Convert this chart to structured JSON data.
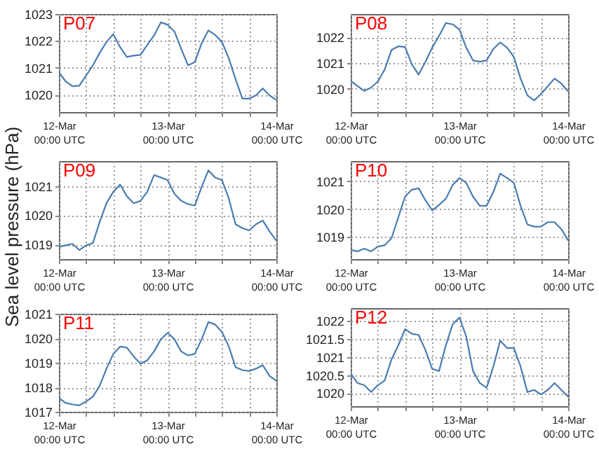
{
  "chart_data": [
    {
      "type": "line",
      "title": "P07",
      "x": [
        "--03-12T00:00",
        "--03-12T01:30",
        "--03-12T03:00",
        "--03-12T04:30",
        "--03-12T06:00",
        "--03-12T07:30",
        "--03-12T09:00",
        "--03-12T10:30",
        "--03-12T12:00",
        "--03-12T13:30",
        "--03-12T15:00",
        "--03-12T16:30",
        "--03-12T18:00",
        "--03-12T19:30",
        "--03-12T21:00",
        "--03-12T22:30",
        "--03-13T00:00",
        "--03-13T01:30",
        "--03-13T03:00",
        "--03-13T04:30",
        "--03-13T06:00",
        "--03-13T07:30",
        "--03-13T09:00",
        "--03-13T10:30",
        "--03-13T12:00",
        "--03-13T13:30",
        "--03-13T15:00",
        "--03-13T16:30",
        "--03-13T18:00",
        "--03-13T19:30",
        "--03-13T21:00",
        "--03-13T22:30",
        "--03-14T00:00"
      ],
      "xlim": [
        "--03-12T00:00",
        "--03-14T00:00"
      ],
      "xticks": [
        {
          "value": "--03-12T00:00",
          "label": "12-Mar\n00:00 UTC"
        },
        {
          "value": "--03-12T06:00",
          "label": null
        },
        {
          "value": "--03-12T12:00",
          "label": null
        },
        {
          "value": "--03-12T18:00",
          "label": null
        },
        {
          "value": "--03-13T00:00",
          "label": "13-Mar\n00:00 UTC"
        },
        {
          "value": "--03-13T06:00",
          "label": null
        },
        {
          "value": "--03-13T12:00",
          "label": null
        },
        {
          "value": "--03-13T18:00",
          "label": null
        },
        {
          "value": "--03-14T00:00",
          "label": "14-Mar\n00:00 UTC"
        }
      ],
      "ylim": [
        1019.35,
        1023
      ],
      "yticks": [
        1020,
        1021,
        1022,
        1023
      ],
      "grid": true,
      "series": [
        {
          "color": "#4a7cb0",
          "values": [
            1020.83,
            1020.49,
            1020.31,
            1020.33,
            1020.71,
            1021.09,
            1021.55,
            1021.96,
            1022.25,
            1021.77,
            1021.4,
            1021.45,
            1021.48,
            1021.85,
            1022.2,
            1022.69,
            1022.6,
            1022.35,
            1021.7,
            1021.09,
            1021.21,
            1021.91,
            1022.39,
            1022.22,
            1021.96,
            1021.35,
            1020.57,
            1019.85,
            1019.85,
            1019.97,
            1020.23,
            1019.97,
            1019.8
          ]
        }
      ]
    },
    {
      "type": "line",
      "title": "P08",
      "x": [
        "--03-12T00:00",
        "--03-12T01:30",
        "--03-12T03:00",
        "--03-12T04:30",
        "--03-12T06:00",
        "--03-12T07:30",
        "--03-12T09:00",
        "--03-12T10:30",
        "--03-12T12:00",
        "--03-12T13:30",
        "--03-12T15:00",
        "--03-12T16:30",
        "--03-12T18:00",
        "--03-12T19:30",
        "--03-12T21:00",
        "--03-12T22:30",
        "--03-13T00:00",
        "--03-13T01:30",
        "--03-13T03:00",
        "--03-13T04:30",
        "--03-13T06:00",
        "--03-13T07:30",
        "--03-13T09:00",
        "--03-13T10:30",
        "--03-13T12:00",
        "--03-13T13:30",
        "--03-13T15:00",
        "--03-13T16:30",
        "--03-13T18:00",
        "--03-13T19:30",
        "--03-13T21:00",
        "--03-13T22:30",
        "--03-14T00:00"
      ],
      "xlim": [
        "--03-12T00:00",
        "--03-14T00:00"
      ],
      "xticks": [
        {
          "value": "--03-12T00:00",
          "label": "12-Mar\n00:00 UTC"
        },
        {
          "value": "--03-12T06:00",
          "label": null
        },
        {
          "value": "--03-12T12:00",
          "label": null
        },
        {
          "value": "--03-12T18:00",
          "label": null
        },
        {
          "value": "--03-13T00:00",
          "label": "13-Mar\n00:00 UTC"
        },
        {
          "value": "--03-13T06:00",
          "label": null
        },
        {
          "value": "--03-13T12:00",
          "label": null
        },
        {
          "value": "--03-13T18:00",
          "label": null
        },
        {
          "value": "--03-14T00:00",
          "label": "14-Mar\n00:00 UTC"
        }
      ],
      "ylim": [
        1019.1,
        1022.9
      ],
      "yticks": [
        1020,
        1021,
        1022
      ],
      "grid": true,
      "series": [
        {
          "color": "#4a7cb0",
          "values": [
            1020.31,
            1020.11,
            1019.92,
            1020.05,
            1020.28,
            1020.75,
            1021.5,
            1021.65,
            1021.62,
            1020.95,
            1020.55,
            1021.05,
            1021.6,
            1022.05,
            1022.55,
            1022.5,
            1022.3,
            1021.6,
            1021.1,
            1021.05,
            1021.1,
            1021.55,
            1021.8,
            1021.6,
            1021.24,
            1020.4,
            1019.75,
            1019.55,
            1019.8,
            1020.1,
            1020.4,
            1020.2,
            1019.9
          ]
        }
      ]
    },
    {
      "type": "line",
      "title": "P09",
      "ylabel": "Sea level pressure (hPa)",
      "x": [
        "--03-12T00:00",
        "--03-12T01:30",
        "--03-12T03:00",
        "--03-12T04:30",
        "--03-12T06:00",
        "--03-12T07:30",
        "--03-12T09:00",
        "--03-12T10:30",
        "--03-12T12:00",
        "--03-12T13:30",
        "--03-12T15:00",
        "--03-12T16:30",
        "--03-12T18:00",
        "--03-12T19:30",
        "--03-12T21:00",
        "--03-12T22:30",
        "--03-13T00:00",
        "--03-13T01:30",
        "--03-13T03:00",
        "--03-13T04:30",
        "--03-13T06:00",
        "--03-13T07:30",
        "--03-13T09:00",
        "--03-13T10:30",
        "--03-13T12:00",
        "--03-13T13:30",
        "--03-13T15:00",
        "--03-13T16:30",
        "--03-13T18:00",
        "--03-13T19:30",
        "--03-13T21:00",
        "--03-13T22:30",
        "--03-14T00:00"
      ],
      "xlim": [
        "--03-12T00:00",
        "--03-14T00:00"
      ],
      "xticks": [
        {
          "value": "--03-12T00:00",
          "label": "12-Mar\n00:00 UTC"
        },
        {
          "value": "--03-12T06:00",
          "label": null
        },
        {
          "value": "--03-12T12:00",
          "label": null
        },
        {
          "value": "--03-12T18:00",
          "label": null
        },
        {
          "value": "--03-13T00:00",
          "label": "13-Mar\n00:00 UTC"
        },
        {
          "value": "--03-13T06:00",
          "label": null
        },
        {
          "value": "--03-13T12:00",
          "label": null
        },
        {
          "value": "--03-13T18:00",
          "label": null
        },
        {
          "value": "--03-14T00:00",
          "label": "14-Mar\n00:00 UTC"
        }
      ],
      "ylim": [
        1018.5,
        1021.85
      ],
      "yticks": [
        1019,
        1020,
        1021
      ],
      "grid": true,
      "series": [
        {
          "color": "#4a7cb0",
          "values": [
            1018.92,
            1018.97,
            1019.02,
            1018.81,
            1018.97,
            1019.05,
            1019.77,
            1020.41,
            1020.8,
            1021.05,
            1020.65,
            1020.41,
            1020.49,
            1020.8,
            1021.37,
            1021.29,
            1021.2,
            1020.73,
            1020.49,
            1020.38,
            1020.33,
            1020.97,
            1021.53,
            1021.29,
            1021.2,
            1020.57,
            1019.69,
            1019.56,
            1019.48,
            1019.69,
            1019.82,
            1019.45,
            1019.13
          ]
        }
      ]
    },
    {
      "type": "line",
      "title": "P10",
      "x": [
        "--03-12T00:00",
        "--03-12T01:30",
        "--03-12T03:00",
        "--03-12T04:30",
        "--03-12T06:00",
        "--03-12T07:30",
        "--03-12T09:00",
        "--03-12T10:30",
        "--03-12T12:00",
        "--03-12T13:30",
        "--03-12T15:00",
        "--03-12T16:30",
        "--03-12T18:00",
        "--03-12T19:30",
        "--03-12T21:00",
        "--03-12T22:30",
        "--03-13T00:00",
        "--03-13T01:30",
        "--03-13T03:00",
        "--03-13T04:30",
        "--03-13T06:00",
        "--03-13T07:30",
        "--03-13T09:00",
        "--03-13T10:30",
        "--03-13T12:00",
        "--03-13T13:30",
        "--03-13T15:00",
        "--03-13T16:30",
        "--03-13T18:00",
        "--03-13T19:30",
        "--03-13T21:00",
        "--03-13T22:30",
        "--03-14T00:00"
      ],
      "xlim": [
        "--03-12T00:00",
        "--03-14T00:00"
      ],
      "xticks": [
        {
          "value": "--03-12T00:00",
          "label": "12-Mar\n00:00 UTC"
        },
        {
          "value": "--03-12T06:00",
          "label": null
        },
        {
          "value": "--03-12T12:00",
          "label": null
        },
        {
          "value": "--03-12T18:00",
          "label": null
        },
        {
          "value": "--03-13T00:00",
          "label": "13-Mar\n00:00 UTC"
        },
        {
          "value": "--03-13T06:00",
          "label": null
        },
        {
          "value": "--03-13T12:00",
          "label": null
        },
        {
          "value": "--03-13T18:00",
          "label": null
        },
        {
          "value": "--03-14T00:00",
          "label": "14-Mar\n00:00 UTC"
        }
      ],
      "ylim": [
        1018.2,
        1021.73
      ],
      "yticks": [
        1019,
        1020,
        1021
      ],
      "grid": true,
      "series": [
        {
          "color": "#4a7cb0",
          "values": [
            1018.53,
            1018.48,
            1018.58,
            1018.48,
            1018.65,
            1018.7,
            1018.95,
            1019.7,
            1020.45,
            1020.7,
            1020.75,
            1020.32,
            1019.95,
            1020.15,
            1020.37,
            1020.87,
            1021.12,
            1020.95,
            1020.45,
            1020.12,
            1020.12,
            1020.62,
            1021.28,
            1021.12,
            1020.95,
            1020.12,
            1019.45,
            1019.37,
            1019.37,
            1019.53,
            1019.53,
            1019.28,
            1018.87
          ]
        }
      ]
    },
    {
      "type": "line",
      "title": "P11",
      "x": [
        "--03-12T00:00",
        "--03-12T01:30",
        "--03-12T03:00",
        "--03-12T04:30",
        "--03-12T06:00",
        "--03-12T07:30",
        "--03-12T09:00",
        "--03-12T10:30",
        "--03-12T12:00",
        "--03-12T13:30",
        "--03-12T15:00",
        "--03-12T16:30",
        "--03-12T18:00",
        "--03-12T19:30",
        "--03-12T21:00",
        "--03-12T22:30",
        "--03-13T00:00",
        "--03-13T01:30",
        "--03-13T03:00",
        "--03-13T04:30",
        "--03-13T06:00",
        "--03-13T07:30",
        "--03-13T09:00",
        "--03-13T10:30",
        "--03-13T12:00",
        "--03-13T13:30",
        "--03-13T15:00",
        "--03-13T16:30",
        "--03-13T18:00",
        "--03-13T19:30",
        "--03-13T21:00",
        "--03-13T22:30",
        "--03-14T00:00"
      ],
      "xlim": [
        "--03-12T00:00",
        "--03-14T00:00"
      ],
      "xticks": [
        {
          "value": "--03-12T00:00",
          "label": "12-Mar\n00:00 UTC"
        },
        {
          "value": "--03-12T06:00",
          "label": null
        },
        {
          "value": "--03-12T12:00",
          "label": null
        },
        {
          "value": "--03-12T18:00",
          "label": null
        },
        {
          "value": "--03-13T00:00",
          "label": "13-Mar\n00:00 UTC"
        },
        {
          "value": "--03-13T06:00",
          "label": null
        },
        {
          "value": "--03-13T12:00",
          "label": null
        },
        {
          "value": "--03-13T18:00",
          "label": null
        },
        {
          "value": "--03-14T00:00",
          "label": "14-Mar\n00:00 UTC"
        }
      ],
      "ylim": [
        1017,
        1021
      ],
      "yticks": [
        1017,
        1018,
        1019,
        1020,
        1021
      ],
      "grid": true,
      "series": [
        {
          "color": "#4a7cb0",
          "values": [
            1017.56,
            1017.36,
            1017.3,
            1017.26,
            1017.42,
            1017.62,
            1018.06,
            1018.76,
            1019.36,
            1019.66,
            1019.62,
            1019.26,
            1018.96,
            1019.1,
            1019.46,
            1019.96,
            1020.22,
            1019.96,
            1019.46,
            1019.3,
            1019.36,
            1019.96,
            1020.66,
            1020.56,
            1020.26,
            1019.66,
            1018.82,
            1018.7,
            1018.66,
            1018.76,
            1018.9,
            1018.46,
            1018.26
          ]
        }
      ]
    },
    {
      "type": "line",
      "title": "P12",
      "x": [
        "--03-12T00:00",
        "--03-12T01:30",
        "--03-12T03:00",
        "--03-12T04:30",
        "--03-12T06:00",
        "--03-12T07:30",
        "--03-12T09:00",
        "--03-12T10:30",
        "--03-12T12:00",
        "--03-12T13:30",
        "--03-12T15:00",
        "--03-12T16:30",
        "--03-12T18:00",
        "--03-12T19:30",
        "--03-12T21:00",
        "--03-12T22:30",
        "--03-13T00:00",
        "--03-13T01:30",
        "--03-13T03:00",
        "--03-13T04:30",
        "--03-13T06:00",
        "--03-13T07:30",
        "--03-13T09:00",
        "--03-13T10:30",
        "--03-13T12:00",
        "--03-13T13:30",
        "--03-13T15:00",
        "--03-13T16:30",
        "--03-13T18:00",
        "--03-13T19:30",
        "--03-13T21:00",
        "--03-13T22:30",
        "--03-14T00:00"
      ],
      "xlim": [
        "--03-12T00:00",
        "--03-14T00:00"
      ],
      "xticks": [
        {
          "value": "--03-12T00:00",
          "label": "12-Mar\n00:00 UTC"
        },
        {
          "value": "--03-12T06:00",
          "label": null
        },
        {
          "value": "--03-12T12:00",
          "label": null
        },
        {
          "value": "--03-12T18:00",
          "label": null
        },
        {
          "value": "--03-13T00:00",
          "label": "13-Mar\n00:00 UTC"
        },
        {
          "value": "--03-13T06:00",
          "label": null
        },
        {
          "value": "--03-13T12:00",
          "label": null
        },
        {
          "value": "--03-13T18:00",
          "label": null
        },
        {
          "value": "--03-14T00:00",
          "label": "14-Mar\n00:00 UTC"
        }
      ],
      "ylim": [
        1019.64,
        1022.35
      ],
      "yticks": [
        1020,
        1020.5,
        1021,
        1021.5,
        1022
      ],
      "grid": true,
      "series": [
        {
          "color": "#4a7cb0",
          "values": [
            1020.54,
            1020.28,
            1020.22,
            1020.03,
            1020.22,
            1020.35,
            1020.93,
            1021.32,
            1021.77,
            1021.64,
            1021.61,
            1021.19,
            1020.67,
            1020.61,
            1021.32,
            1021.9,
            1022.09,
            1021.57,
            1020.61,
            1020.28,
            1020.15,
            1020.74,
            1021.45,
            1021.25,
            1021.25,
            1020.74,
            1020.03,
            1020.09,
            1019.96,
            1020.09,
            1020.28,
            1020.09,
            1019.9
          ]
        }
      ]
    }
  ]
}
